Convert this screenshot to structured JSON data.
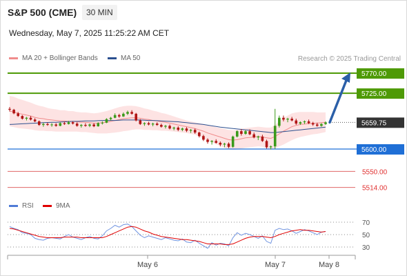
{
  "header": {
    "title": "S&P 500 (CME)",
    "timeframe": "30 MIN",
    "datetime": "Wednesday, May 7, 2025 11:25:22 AM CET"
  },
  "legend": {
    "main": [
      {
        "label": "MA 20 + Bollinger Bands",
        "color": "#f08c8c"
      },
      {
        "label": "MA 50",
        "color": "#2b4f8f"
      }
    ],
    "credit": "Research © 2025 Trading Central",
    "rsi": [
      {
        "label": "RSI",
        "color": "#4f7bd6"
      },
      {
        "label": "9MA",
        "color": "#e00000"
      }
    ]
  },
  "chart_data": [
    {
      "type": "candlestick",
      "x_ticks": [
        "May 6",
        "May 7",
        "May 8"
      ],
      "levels": [
        {
          "value": 5770.0,
          "label": "5770.00",
          "kind": "target",
          "color": "#4e9a06"
        },
        {
          "value": 5725.0,
          "label": "5725.00",
          "kind": "target",
          "color": "#4e9a06"
        },
        {
          "value": 5659.75,
          "label": "5659.75",
          "kind": "last-price",
          "color": "#333333"
        },
        {
          "value": 5600.0,
          "label": "5600.00",
          "kind": "pivot",
          "color": "#1f6fd6"
        },
        {
          "value": 5550.0,
          "label": "5550.00",
          "kind": "support",
          "color": "#e06666"
        },
        {
          "value": 5514.0,
          "label": "5514.00",
          "kind": "support",
          "color": "#e06666"
        }
      ],
      "forecast_arrow": {
        "from": 5659.75,
        "to": 5770.0,
        "color": "#2b5fa8"
      },
      "ohlc": [
        [
          5690,
          5694,
          5684,
          5688
        ],
        [
          5688,
          5690,
          5678,
          5680
        ],
        [
          5680,
          5683,
          5672,
          5674
        ],
        [
          5674,
          5676,
          5666,
          5668
        ],
        [
          5668,
          5672,
          5664,
          5670
        ],
        [
          5670,
          5674,
          5664,
          5666
        ],
        [
          5666,
          5669,
          5660,
          5662
        ],
        [
          5662,
          5664,
          5652,
          5654
        ],
        [
          5654,
          5659,
          5650,
          5656
        ],
        [
          5656,
          5659,
          5652,
          5654
        ],
        [
          5654,
          5658,
          5650,
          5655
        ],
        [
          5655,
          5658,
          5650,
          5652
        ],
        [
          5652,
          5660,
          5651,
          5658
        ],
        [
          5658,
          5661,
          5654,
          5656
        ],
        [
          5656,
          5663,
          5655,
          5660
        ],
        [
          5660,
          5662,
          5655,
          5657
        ],
        [
          5657,
          5660,
          5650,
          5652
        ],
        [
          5652,
          5656,
          5648,
          5654
        ],
        [
          5654,
          5658,
          5650,
          5652
        ],
        [
          5652,
          5657,
          5649,
          5655
        ],
        [
          5655,
          5658,
          5649,
          5651
        ],
        [
          5651,
          5660,
          5650,
          5658
        ],
        [
          5658,
          5662,
          5655,
          5659
        ],
        [
          5659,
          5669,
          5658,
          5667
        ],
        [
          5667,
          5672,
          5664,
          5670
        ],
        [
          5670,
          5680,
          5669,
          5676
        ],
        [
          5676,
          5679,
          5670,
          5673
        ],
        [
          5673,
          5682,
          5672,
          5679
        ],
        [
          5679,
          5686,
          5676,
          5683
        ],
        [
          5683,
          5687,
          5677,
          5679
        ],
        [
          5679,
          5681,
          5662,
          5664
        ],
        [
          5664,
          5667,
          5654,
          5656
        ],
        [
          5656,
          5660,
          5652,
          5658
        ],
        [
          5658,
          5661,
          5653,
          5655
        ],
        [
          5655,
          5659,
          5651,
          5657
        ],
        [
          5657,
          5660,
          5652,
          5654
        ],
        [
          5654,
          5657,
          5648,
          5650
        ],
        [
          5650,
          5654,
          5646,
          5652
        ],
        [
          5652,
          5655,
          5644,
          5646
        ],
        [
          5646,
          5650,
          5642,
          5648
        ],
        [
          5648,
          5651,
          5640,
          5643
        ],
        [
          5643,
          5648,
          5640,
          5646
        ],
        [
          5646,
          5649,
          5638,
          5641
        ],
        [
          5641,
          5645,
          5636,
          5643
        ],
        [
          5643,
          5646,
          5634,
          5637
        ],
        [
          5637,
          5639,
          5626,
          5629
        ],
        [
          5629,
          5632,
          5618,
          5621
        ],
        [
          5621,
          5624,
          5612,
          5616
        ],
        [
          5616,
          5620,
          5610,
          5618
        ],
        [
          5618,
          5622,
          5612,
          5614
        ],
        [
          5614,
          5617,
          5606,
          5610
        ],
        [
          5610,
          5614,
          5604,
          5612
        ],
        [
          5612,
          5615,
          5602,
          5605
        ],
        [
          5605,
          5630,
          5603,
          5628
        ],
        [
          5628,
          5642,
          5626,
          5640
        ],
        [
          5640,
          5645,
          5630,
          5634
        ],
        [
          5634,
          5642,
          5632,
          5640
        ],
        [
          5640,
          5644,
          5631,
          5633
        ],
        [
          5633,
          5637,
          5624,
          5626
        ],
        [
          5626,
          5630,
          5620,
          5628
        ],
        [
          5628,
          5632,
          5616,
          5618
        ],
        [
          5618,
          5621,
          5601,
          5604
        ],
        [
          5604,
          5608,
          5599,
          5606
        ],
        [
          5606,
          5690,
          5600,
          5652
        ],
        [
          5652,
          5675,
          5648,
          5670
        ],
        [
          5670,
          5675,
          5662,
          5666
        ],
        [
          5666,
          5670,
          5660,
          5668
        ],
        [
          5668,
          5672,
          5662,
          5664
        ],
        [
          5664,
          5668,
          5654,
          5657
        ],
        [
          5657,
          5662,
          5654,
          5660
        ],
        [
          5660,
          5664,
          5656,
          5662
        ],
        [
          5662,
          5666,
          5656,
          5658
        ],
        [
          5658,
          5661,
          5652,
          5655
        ],
        [
          5655,
          5659,
          5650,
          5652
        ],
        [
          5652,
          5658,
          5650,
          5656
        ],
        [
          5656,
          5662,
          5654,
          5659.75
        ]
      ],
      "ma20": [
        5685,
        5683,
        5680,
        5678,
        5676,
        5674,
        5671,
        5669,
        5668,
        5666,
        5665,
        5664,
        5663,
        5663,
        5662,
        5662,
        5661,
        5660,
        5660,
        5659,
        5658,
        5658,
        5659,
        5660,
        5662,
        5664,
        5666,
        5668,
        5669,
        5670,
        5670,
        5669,
        5667,
        5666,
        5664,
        5663,
        5661,
        5660,
        5658,
        5656,
        5654,
        5652,
        5650,
        5648,
        5646,
        5643,
        5640,
        5636,
        5633,
        5630,
        5627,
        5624,
        5621,
        5620,
        5621,
        5623,
        5625,
        5626,
        5627,
        5628,
        5627,
        5625,
        5624,
        5628,
        5634,
        5640,
        5645,
        5650,
        5653,
        5655,
        5656,
        5657,
        5658,
        5658,
        5659,
        5660
      ],
      "ma50": [
        5655,
        5655.5,
        5656,
        5656.5,
        5657,
        5657.5,
        5658,
        5658.5,
        5659,
        5659.5,
        5660,
        5660,
        5660.5,
        5661,
        5661.5,
        5662,
        5662,
        5662.5,
        5663,
        5663,
        5663,
        5663.5,
        5664,
        5664,
        5664,
        5664,
        5664.5,
        5665,
        5665,
        5665,
        5665,
        5665,
        5664.5,
        5664,
        5664,
        5663.5,
        5663,
        5662.5,
        5662,
        5661.5,
        5661,
        5660,
        5659,
        5658,
        5657,
        5656,
        5655,
        5653.5,
        5652,
        5650.5,
        5649,
        5648,
        5647,
        5646,
        5645,
        5644,
        5643,
        5642,
        5641,
        5640,
        5639,
        5638,
        5637,
        5637,
        5638,
        5639,
        5640,
        5641,
        5642,
        5643,
        5644,
        5645,
        5646,
        5647,
        5648,
        5649
      ],
      "bb_width": [
        34,
        34,
        33,
        32,
        31,
        30,
        29,
        28,
        27,
        26,
        25,
        25,
        24,
        24,
        23,
        23,
        22,
        22,
        22,
        22,
        22,
        23,
        24,
        25,
        26,
        27,
        28,
        28,
        28,
        27,
        26,
        25,
        24,
        23,
        22,
        21,
        20,
        19,
        18,
        17,
        16,
        15,
        14,
        14,
        14,
        15,
        16,
        17,
        18,
        19,
        20,
        21,
        22,
        22,
        22,
        22,
        22,
        22,
        22,
        22,
        22,
        23,
        24,
        26,
        28,
        30,
        30,
        30,
        29,
        28,
        27,
        26,
        25,
        24,
        23,
        22
      ]
    },
    {
      "type": "line",
      "y_ticks": [
        "70",
        "50",
        "30"
      ],
      "ylim": [
        20,
        80
      ],
      "rsi": [
        63,
        60,
        58,
        53,
        52,
        50,
        44,
        42,
        41,
        44,
        45,
        44,
        43,
        47,
        50,
        46,
        44,
        42,
        45,
        47,
        44,
        43,
        48,
        56,
        60,
        65,
        62,
        66,
        67,
        63,
        56,
        49,
        45,
        48,
        46,
        44,
        42,
        45,
        43,
        41,
        40,
        43,
        38,
        37,
        41,
        36,
        32,
        28,
        37,
        33,
        36,
        35,
        32,
        45,
        53,
        49,
        52,
        50,
        47,
        44,
        48,
        39,
        36,
        57,
        60,
        58,
        59,
        56,
        52,
        55,
        58,
        56,
        53,
        50,
        54,
        55
      ],
      "rsi_ma": [
        60,
        59,
        57,
        55,
        53,
        51,
        49,
        47,
        46,
        45,
        45,
        45,
        45,
        46,
        46,
        46,
        46,
        45,
        45,
        45,
        45,
        45,
        45,
        47,
        50,
        53,
        56,
        59,
        62,
        63,
        62,
        59,
        56,
        54,
        51,
        49,
        47,
        46,
        45,
        44,
        43,
        42,
        42,
        41,
        40,
        39,
        37,
        35,
        35,
        35,
        35,
        34,
        34,
        35,
        38,
        41,
        44,
        46,
        47,
        47,
        47,
        46,
        45,
        47,
        50,
        52,
        54,
        56,
        57,
        58,
        57,
        57,
        56,
        55,
        54,
        55
      ]
    }
  ]
}
